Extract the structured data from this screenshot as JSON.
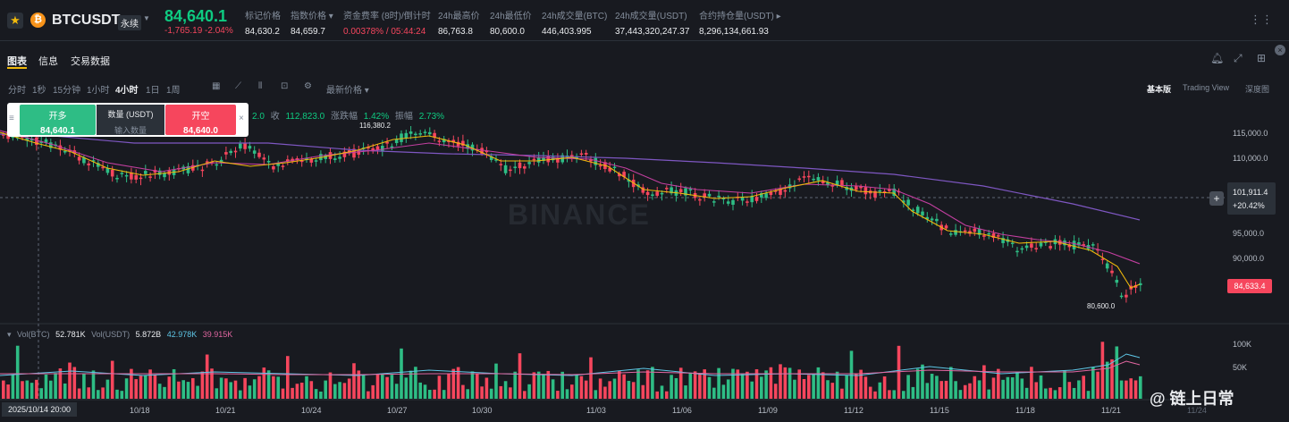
{
  "header": {
    "star_icon": "star-icon",
    "coin_icon_glyph": "₿",
    "symbol": "BTCUSDT",
    "contract_type": "永续",
    "last_price": "84,640.1",
    "change": "-1,765.19 -2.04%",
    "stats": [
      {
        "label": "标记价格",
        "value": "84,630.2"
      },
      {
        "label": "指数价格 ▾",
        "value": "84,659.7"
      },
      {
        "label": "资金费率 (8时)/倒计时",
        "value": "0.00378% / 05:44:24"
      },
      {
        "label": "24h最高价",
        "value": "86,763.8"
      },
      {
        "label": "24h最低价",
        "value": "80,600.0"
      },
      {
        "label": "24h成交量(BTC)",
        "value": "446,403.995"
      },
      {
        "label": "24h成交量(USDT)",
        "value": "37,443,320,247.37"
      },
      {
        "label": "合约持仓量(USDT) ▸",
        "value": "8,296,134,661.93"
      }
    ]
  },
  "tabs": [
    "图表",
    "信息",
    "交易数据"
  ],
  "toolbar": {
    "intervals": [
      "分时",
      "1秒",
      "15分钟",
      "1小时",
      "4小时",
      "1日",
      "1周"
    ],
    "active_interval": "4小时",
    "price_type": "最新价格 ▾",
    "views": [
      "基本版",
      "Trading View",
      "深度图"
    ]
  },
  "order_panel": {
    "buy_label": "开多",
    "buy_price": "84,640.1",
    "qty_label": "数量 (USDT)",
    "qty_placeholder": "输入数量",
    "sell_label": "开空",
    "sell_price": "84,640.0"
  },
  "ohlc": {
    "prefix": "2.0",
    "close_label": "收",
    "close_value": "112,823.0",
    "change_label": "涨跌幅",
    "change_value": "1.42%",
    "amp_label": "振幅",
    "amp_value": "2.73%"
  },
  "watermark": "BINANCE",
  "price_axis": [
    "115,000.0",
    "110,000.0",
    "95,000.0",
    "90,000.0"
  ],
  "crosshair": {
    "price": "101,911.4",
    "change": "+20.42%"
  },
  "current_price_tag": "84,633.4",
  "high_marker": "116,380.2",
  "low_marker": "80,600.0",
  "volume": {
    "label_btc": "Vol(BTC)",
    "value_btc": "52.781K",
    "label_usdt": "Vol(USDT)",
    "value_usdt": "5.872B",
    "ma1": "42.978K",
    "ma2": "39.915K",
    "axis": [
      "100K",
      "50K"
    ]
  },
  "x_axis": [
    "10/18",
    "10/21",
    "10/24",
    "10/27",
    "10/30",
    "11/03",
    "11/06",
    "11/09",
    "11/12",
    "11/15",
    "11/18",
    "11/21",
    "11/24"
  ],
  "crosshair_date": "2025/10/14 20:00",
  "brand_text": "@ 链上日常",
  "colors": {
    "up": "#2ebd85",
    "down": "#f6465d",
    "accent": "#f0b90b",
    "ma7": "#f0b90b",
    "ma25": "#c33fa0",
    "ma99": "#7e57c2"
  }
}
